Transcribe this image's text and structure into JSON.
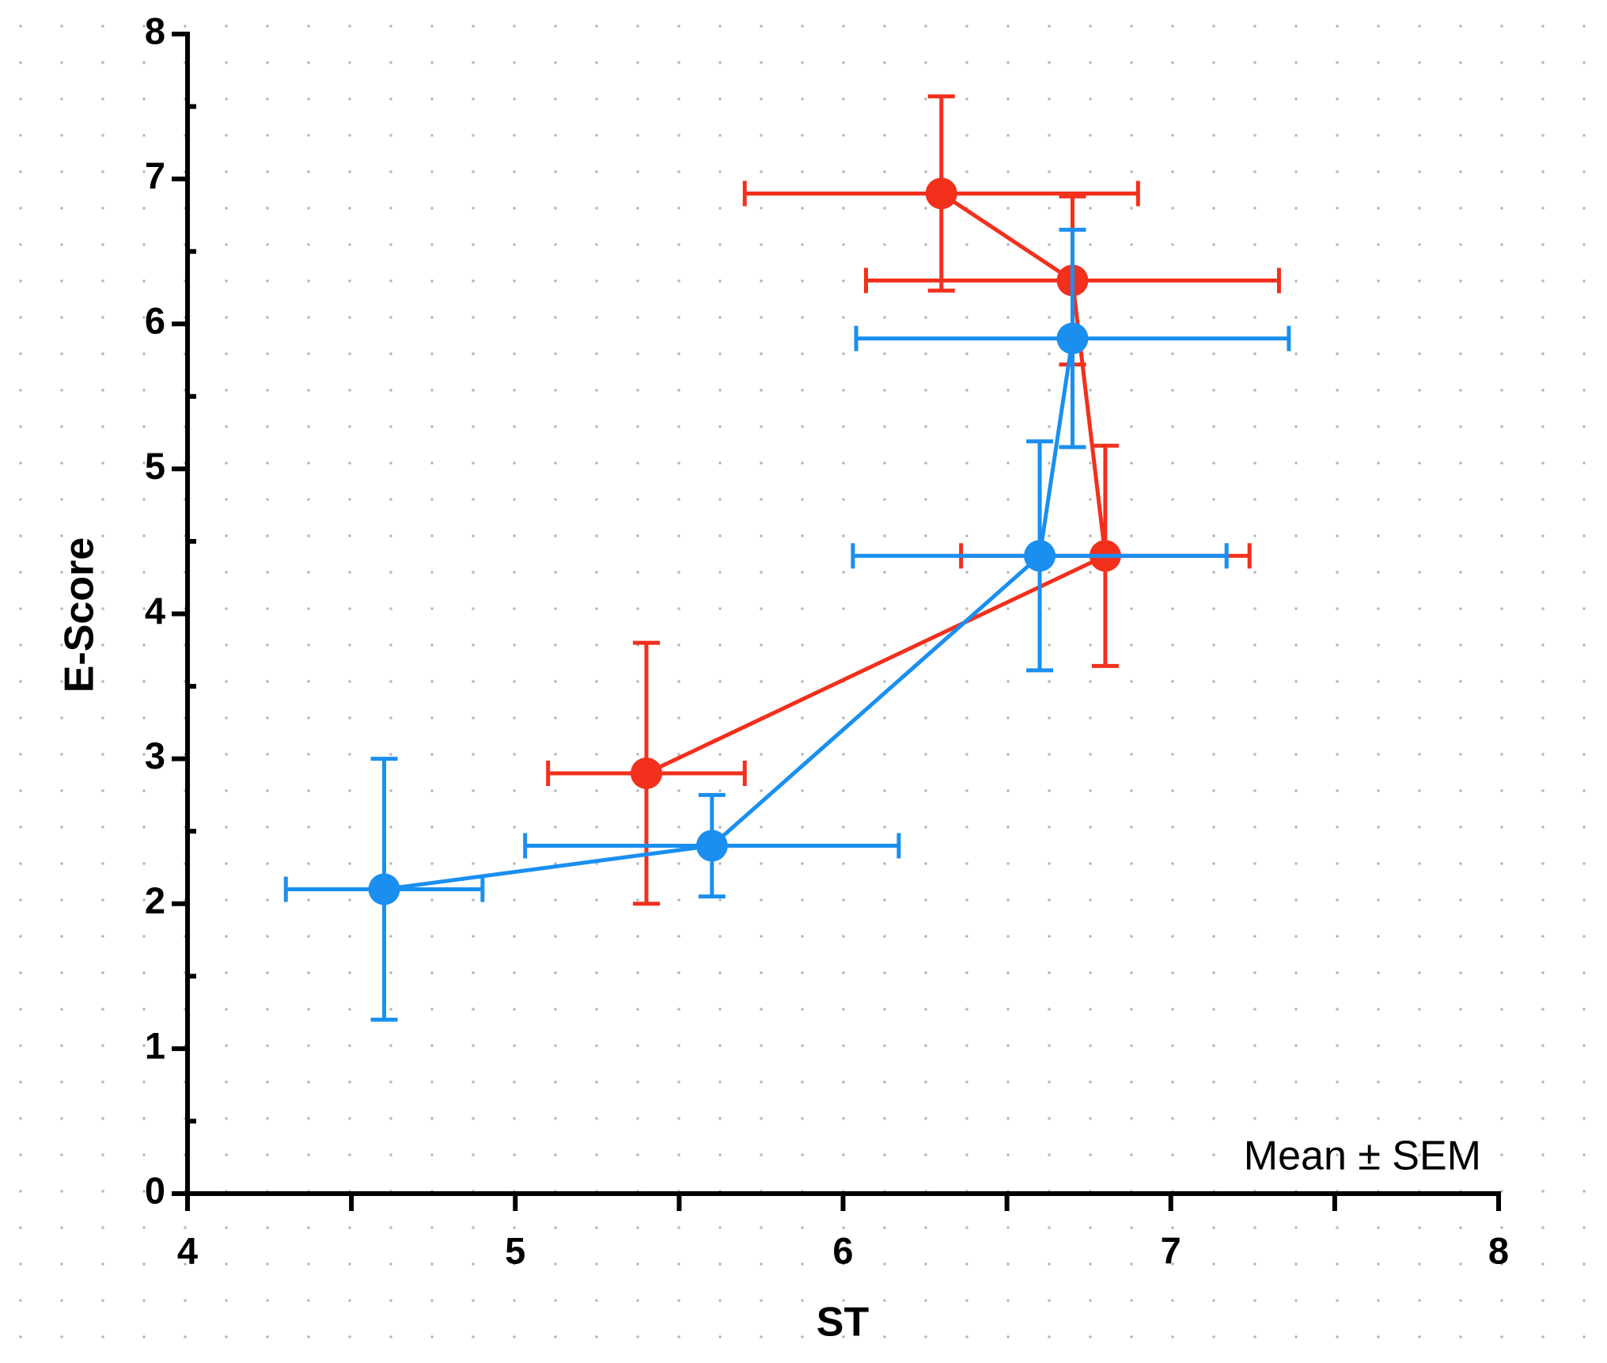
{
  "chart_data": {
    "type": "scatter",
    "xlabel": "ST",
    "ylabel": "E-Score",
    "annotation": "Mean ± SEM",
    "xlim": [
      4,
      8
    ],
    "ylim": [
      0,
      8
    ],
    "xticks": [
      4,
      5,
      6,
      7,
      8
    ],
    "yticks": [
      0,
      1,
      2,
      3,
      4,
      5,
      6,
      7,
      8
    ],
    "xminorticks": [
      4.5,
      5.5,
      6.5,
      7.5
    ],
    "yminorticks": [
      0.5,
      1.5,
      2.5,
      3.5,
      4.5,
      5.5,
      6.5,
      7.5
    ],
    "connect": true,
    "series": [
      {
        "color": "#f2301c",
        "x": [
          5.4,
          6.8,
          6.7,
          6.3
        ],
        "y": [
          2.9,
          4.4,
          6.3,
          6.9
        ],
        "xerr": [
          0.3,
          0.44,
          0.63,
          0.6
        ],
        "yerr": [
          0.9,
          0.76,
          0.58,
          0.67
        ]
      },
      {
        "color": "#1a8ff0",
        "x": [
          4.6,
          5.6,
          6.6,
          6.7
        ],
        "y": [
          2.1,
          2.4,
          4.4,
          5.9
        ],
        "xerr": [
          0.3,
          0.57,
          0.57,
          0.66
        ],
        "yerr": [
          0.9,
          0.35,
          0.79,
          0.75
        ]
      }
    ]
  }
}
